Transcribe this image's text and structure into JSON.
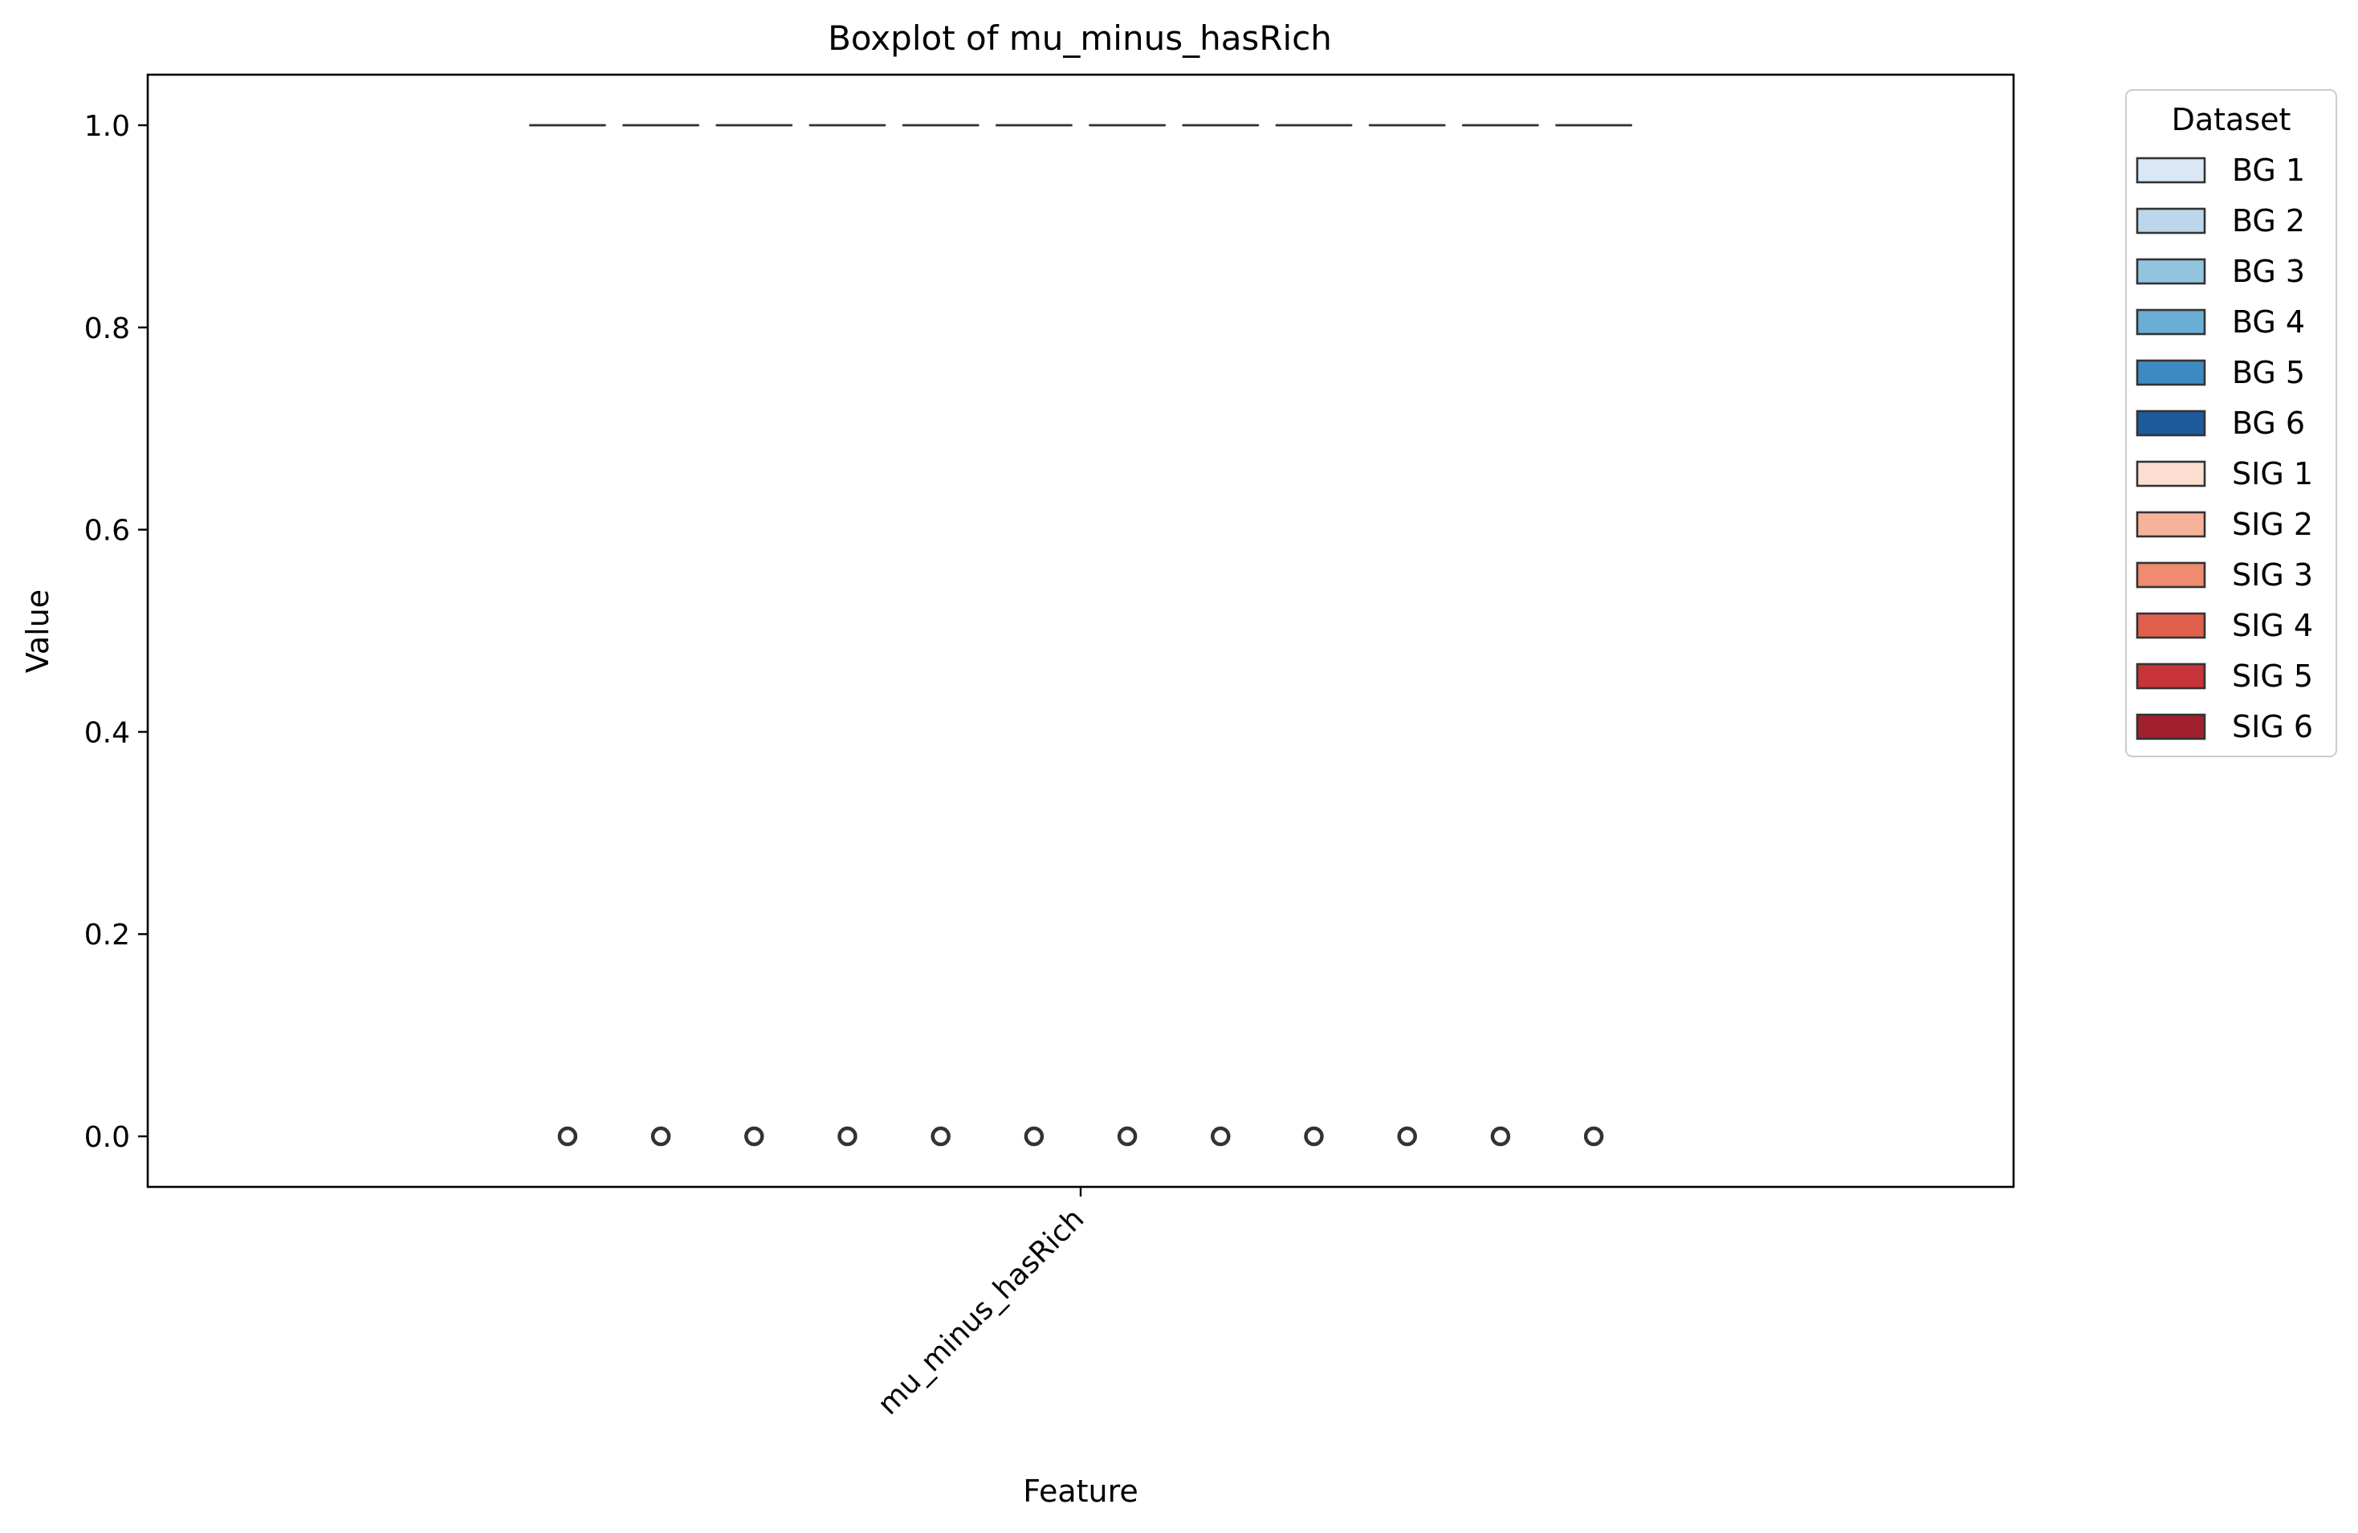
{
  "chart_data": {
    "type": "box",
    "title": "Boxplot of mu_minus_hasRich",
    "xlabel": "Feature",
    "ylabel": "Value",
    "categories": [
      "mu_minus_hasRich"
    ],
    "ylim": [
      -0.05,
      1.05
    ],
    "yticks": [
      0.0,
      0.2,
      0.4,
      0.6,
      0.8,
      1.0
    ],
    "ytick_labels": [
      "0.0",
      "0.2",
      "0.4",
      "0.6",
      "0.8",
      "1.0"
    ],
    "grid": false,
    "legend": {
      "title": "Dataset",
      "placement": "outside-top-right"
    },
    "series": [
      {
        "name": "BG 1",
        "color": "#dae8f5",
        "q1": 1.0,
        "median": 1.0,
        "q3": 1.0,
        "whisker_low": 1.0,
        "whisker_high": 1.0,
        "outliers": [
          0.0
        ]
      },
      {
        "name": "BG 2",
        "color": "#bcd7eb",
        "q1": 1.0,
        "median": 1.0,
        "q3": 1.0,
        "whisker_low": 1.0,
        "whisker_high": 1.0,
        "outliers": [
          0.0
        ]
      },
      {
        "name": "BG 3",
        "color": "#93c4de",
        "q1": 1.0,
        "median": 1.0,
        "q3": 1.0,
        "whisker_low": 1.0,
        "whisker_high": 1.0,
        "outliers": [
          0.0
        ]
      },
      {
        "name": "BG 4",
        "color": "#6aadd5",
        "q1": 1.0,
        "median": 1.0,
        "q3": 1.0,
        "whisker_low": 1.0,
        "whisker_high": 1.0,
        "outliers": [
          0.0
        ]
      },
      {
        "name": "BG 5",
        "color": "#3d8ac2",
        "q1": 1.0,
        "median": 1.0,
        "q3": 1.0,
        "whisker_low": 1.0,
        "whisker_high": 1.0,
        "outliers": [
          0.0
        ]
      },
      {
        "name": "BG 6",
        "color": "#1d5a9b",
        "q1": 1.0,
        "median": 1.0,
        "q3": 1.0,
        "whisker_low": 1.0,
        "whisker_high": 1.0,
        "outliers": [
          0.0
        ]
      },
      {
        "name": "SIG 1",
        "color": "#fcded0",
        "q1": 1.0,
        "median": 1.0,
        "q3": 1.0,
        "whisker_low": 1.0,
        "whisker_high": 1.0,
        "outliers": [
          0.0
        ]
      },
      {
        "name": "SIG 2",
        "color": "#f7b39a",
        "q1": 1.0,
        "median": 1.0,
        "q3": 1.0,
        "whisker_low": 1.0,
        "whisker_high": 1.0,
        "outliers": [
          0.0
        ]
      },
      {
        "name": "SIG 3",
        "color": "#ee8b70",
        "q1": 1.0,
        "median": 1.0,
        "q3": 1.0,
        "whisker_low": 1.0,
        "whisker_high": 1.0,
        "outliers": [
          0.0
        ]
      },
      {
        "name": "SIG 4",
        "color": "#e0604e",
        "q1": 1.0,
        "median": 1.0,
        "q3": 1.0,
        "whisker_low": 1.0,
        "whisker_high": 1.0,
        "outliers": [
          0.0
        ]
      },
      {
        "name": "SIG 5",
        "color": "#c7343a",
        "q1": 1.0,
        "median": 1.0,
        "q3": 1.0,
        "whisker_low": 1.0,
        "whisker_high": 1.0,
        "outliers": [
          0.0
        ]
      },
      {
        "name": "SIG 6",
        "color": "#a0202e",
        "q1": 1.0,
        "median": 1.0,
        "q3": 1.0,
        "whisker_low": 1.0,
        "whisker_high": 1.0,
        "outliers": [
          0.0
        ]
      }
    ]
  }
}
